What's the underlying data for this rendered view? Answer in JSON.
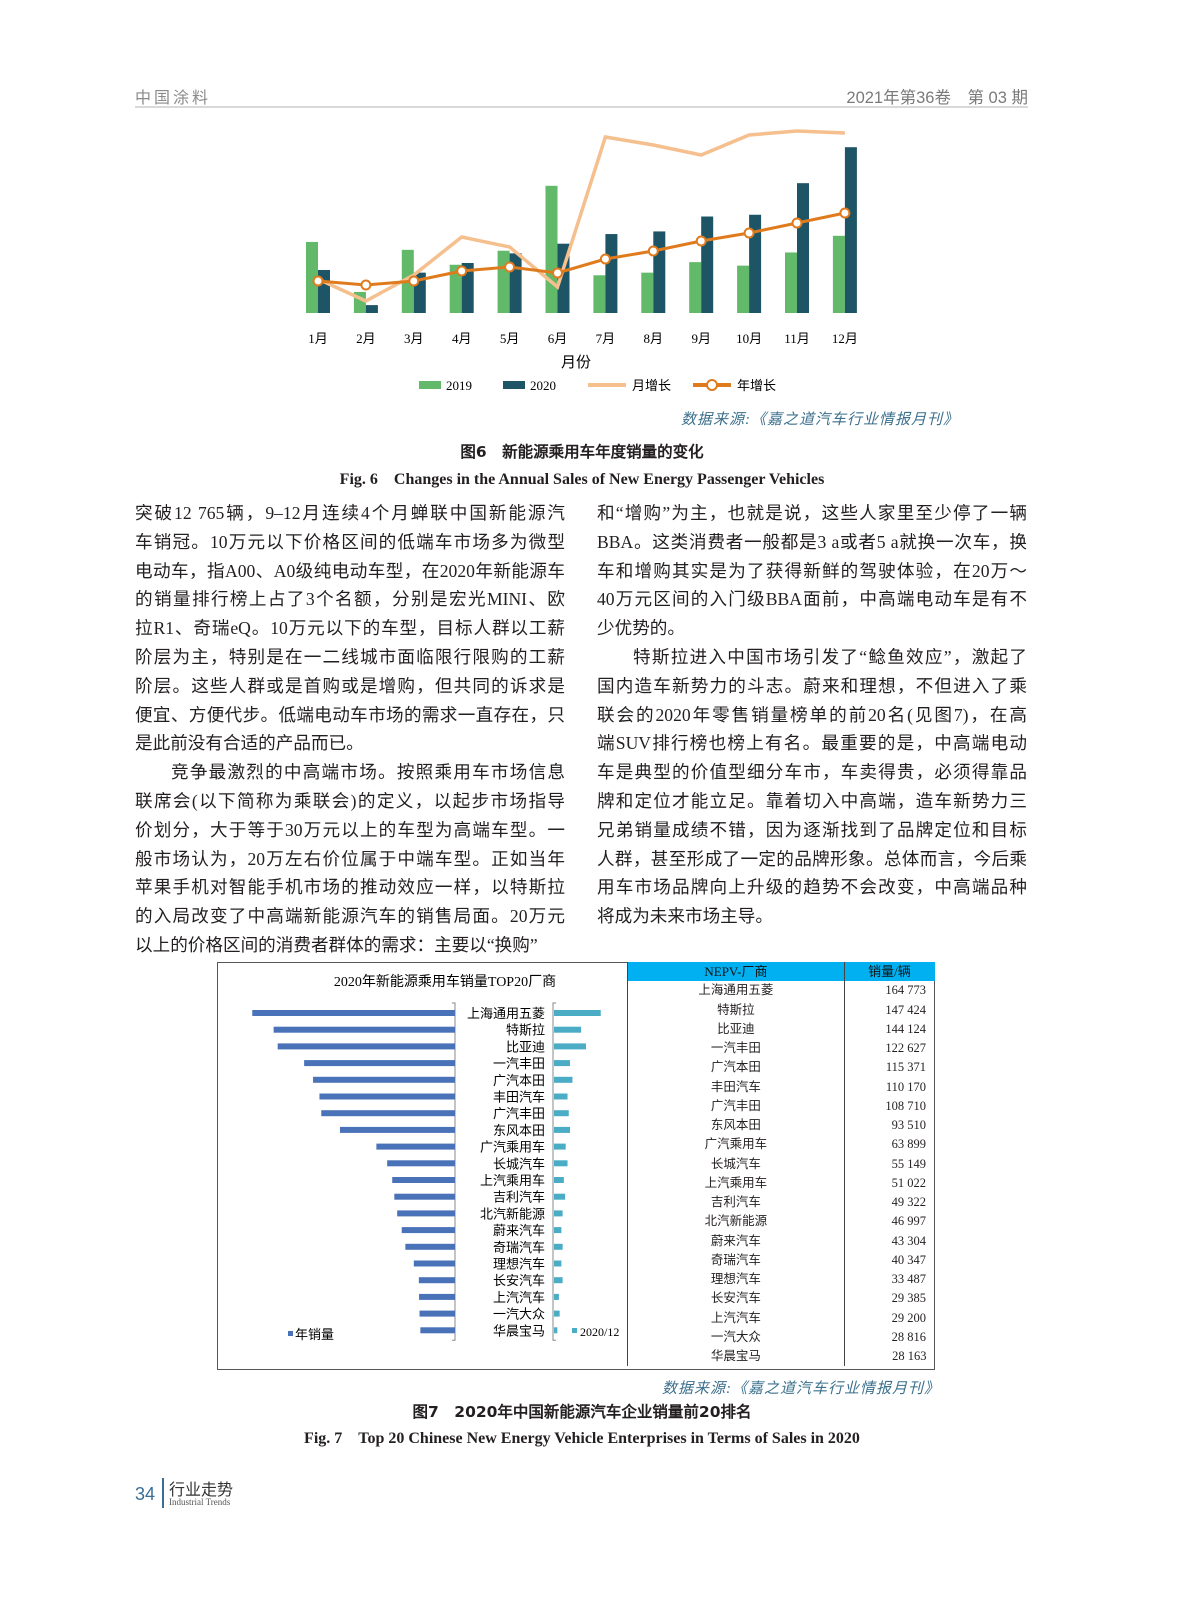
{
  "header": {
    "journal": "中国涂料",
    "issue": "2021年第36卷　第 03 期"
  },
  "figure6": {
    "source": "数据来源:《嘉之道汽车行业情报月刊》",
    "caption_cn": "图6　新能源乘用车年度销量的变化",
    "caption_en": "Fig. 6　Changes in the Annual Sales of New Energy Passenger Vehicles"
  },
  "body": {
    "left": [
      {
        "indent": false,
        "lines": [
          "突破12 765辆，9–12月连续4个月蝉联中国新能源汽",
          "车销冠。10万元以下价格区间的低端车市场多为微型",
          "电动车，指A00、A0级纯电动车型，在2020年新能源车",
          "的销量排行榜上占了3个名额，分别是宏光MINI、欧",
          "拉R1、奇瑞eQ。10万元以下的车型，目标人群以工薪",
          "阶层为主，特别是在一二线城市面临限行限购的工薪",
          "阶层。这些人群或是首购或是增购，但共同的诉求是",
          "便宜、方便代步。低端电动车市场的需求一直存在，只",
          "是此前没有合适的产品而已。"
        ]
      },
      {
        "indent": true,
        "lines": [
          "竞争最激烈的中高端市场。按照乘用车市场信息",
          "联席会(以下简称为乘联会)的定义，以起步市场指导",
          "价划分，大于等于30万元以上的车型为高端车型。一",
          "般市场认为，20万左右价位属于中端车型。正如当年",
          "苹果手机对智能手机市场的推动效应一样，以特斯拉",
          "的入局改变了中高端新能源汽车的销售局面。20万元",
          "以上的价格区间的消费者群体的需求：主要以“换购”"
        ]
      }
    ],
    "right": [
      {
        "indent": false,
        "lines": [
          "和“增购”为主，也就是说，这些人家里至少停了一辆",
          "BBA。这类消费者一般都是3 a或者5 a就换一次车，换",
          "车和增购其实是为了获得新鲜的驾驶体验，在20万～",
          "40万元区间的入门级BBA面前，中高端电动车是有不",
          "少优势的。"
        ]
      },
      {
        "indent": true,
        "lines": [
          "特斯拉进入中国市场引发了“鲶鱼效应”，激起了",
          "国内造车新势力的斗志。蔚来和理想，不但进入了乘",
          "联会的2020年零售销量榜单的前20名(见图7)，在高",
          "端SUV排行榜也榜上有名。最重要的是，中高端电动",
          "车是典型的价值型细分车市，车卖得贵，必须得靠品",
          "牌和定位才能立足。靠着切入中高端，造车新势力三",
          "兄弟销量成绩不错，因为逐渐找到了品牌定位和目标",
          "人群，甚至形成了一定的品牌形象。总体而言，今后乘",
          "用车市场品牌向上升级的趋势不会改变，中高端品种",
          "将成为未来市场主导。"
        ]
      }
    ]
  },
  "figure7": {
    "table": {
      "headers": [
        "NEPV-厂商",
        "销量/辆"
      ],
      "rows": [
        [
          "上海通用五菱",
          "164 773"
        ],
        [
          "特斯拉",
          "147 424"
        ],
        [
          "比亚迪",
          "144 124"
        ],
        [
          "一汽丰田",
          "122 627"
        ],
        [
          "广汽本田",
          "115 371"
        ],
        [
          "丰田汽车",
          "110 170"
        ],
        [
          "广汽丰田",
          "108 710"
        ],
        [
          "东风本田",
          "93 510"
        ],
        [
          "广汽乘用车",
          "63 899"
        ],
        [
          "长城汽车",
          "55 149"
        ],
        [
          "上汽乘用车",
          "51 022"
        ],
        [
          "吉利汽车",
          "49 322"
        ],
        [
          "北汽新能源",
          "46 997"
        ],
        [
          "蔚来汽车",
          "43 304"
        ],
        [
          "奇瑞汽车",
          "40 347"
        ],
        [
          "理想汽车",
          "33 487"
        ],
        [
          "长安汽车",
          "29 385"
        ],
        [
          "上汽汽车",
          "29 200"
        ],
        [
          "一汽大众",
          "28 816"
        ],
        [
          "华晨宝马",
          "28 163"
        ]
      ],
      "header_color": "#00b0f0"
    },
    "source": "数据来源:《嘉之道汽车行业情报月刊》",
    "caption_cn": "图7　2020年中国新能源汽车企业销量前20排名",
    "caption_en": "Fig. 7　Top 20 Chinese New Energy Vehicle Enterprises in Terms of Sales in 2020"
  },
  "chart_data": [
    {
      "type": "bar+line",
      "title": "",
      "xlabel": "月份",
      "ylabel": "",
      "categories": [
        "1月",
        "2月",
        "3月",
        "4月",
        "5月",
        "6月",
        "7月",
        "8月",
        "9月",
        "10月",
        "11月",
        "12月"
      ],
      "series": [
        {
          "name": "2019",
          "kind": "bar",
          "color": "#62b96a",
          "values": [
            81,
            24,
            72,
            55,
            71,
            145,
            43,
            46,
            58,
            54,
            69,
            88
          ]
        },
        {
          "name": "2020",
          "kind": "bar",
          "color": "#1d5566",
          "values": [
            49,
            9,
            46,
            57,
            68,
            79,
            90,
            93,
            110,
            112,
            148,
            189
          ]
        },
        {
          "name": "月增长",
          "kind": "line",
          "color": "#f5bf8e",
          "values": [
            17,
            6,
            19,
            38,
            33,
            13,
            88,
            84,
            79,
            89,
            91,
            90
          ]
        },
        {
          "name": "年增长",
          "kind": "line-marker",
          "color": "#e07b1d",
          "values": [
            16,
            14,
            16,
            21,
            23,
            20,
            27,
            31,
            36,
            40,
            45,
            50
          ]
        }
      ],
      "bar_ylim": [
        0,
        228
      ],
      "line_ylim": [
        0,
        100
      ],
      "grid": false,
      "legend": "bottom"
    },
    {
      "type": "bar",
      "orientation": "horizontal-butterfly",
      "title": "2020年新能源乘用车销量TOP20厂商",
      "categories": [
        "上海通用五菱",
        "特斯拉",
        "比亚迪",
        "一汽丰田",
        "广汽本田",
        "丰田汽车",
        "广汽丰田",
        "东风本田",
        "广汽乘用车",
        "长城汽车",
        "上汽乘用车",
        "吉利汽车",
        "北汽新能源",
        "蔚来汽车",
        "奇瑞汽车",
        "理想汽车",
        "长安汽车",
        "上汽汽车",
        "一汽大众",
        "华晨宝马"
      ],
      "series": [
        {
          "name": "年销量",
          "color": "#4a72b8",
          "values": [
            164773,
            147424,
            144124,
            122627,
            115371,
            110170,
            108710,
            93510,
            63899,
            55149,
            51022,
            49322,
            46997,
            43304,
            40347,
            33487,
            29385,
            29200,
            28816,
            28163
          ]
        },
        {
          "name": "2020/12",
          "color": "#4bacc6",
          "values": [
            38000,
            22000,
            26000,
            13000,
            15000,
            11000,
            12000,
            13000,
            9500,
            11000,
            8000,
            9000,
            7000,
            6000,
            7000,
            6000,
            7000,
            4000,
            4600,
            2700
          ]
        }
      ],
      "grid": false,
      "legend": "bottom"
    }
  ],
  "footer": {
    "page": "34",
    "section_cn": "行业走势",
    "section_en": "Industrial Trends"
  }
}
